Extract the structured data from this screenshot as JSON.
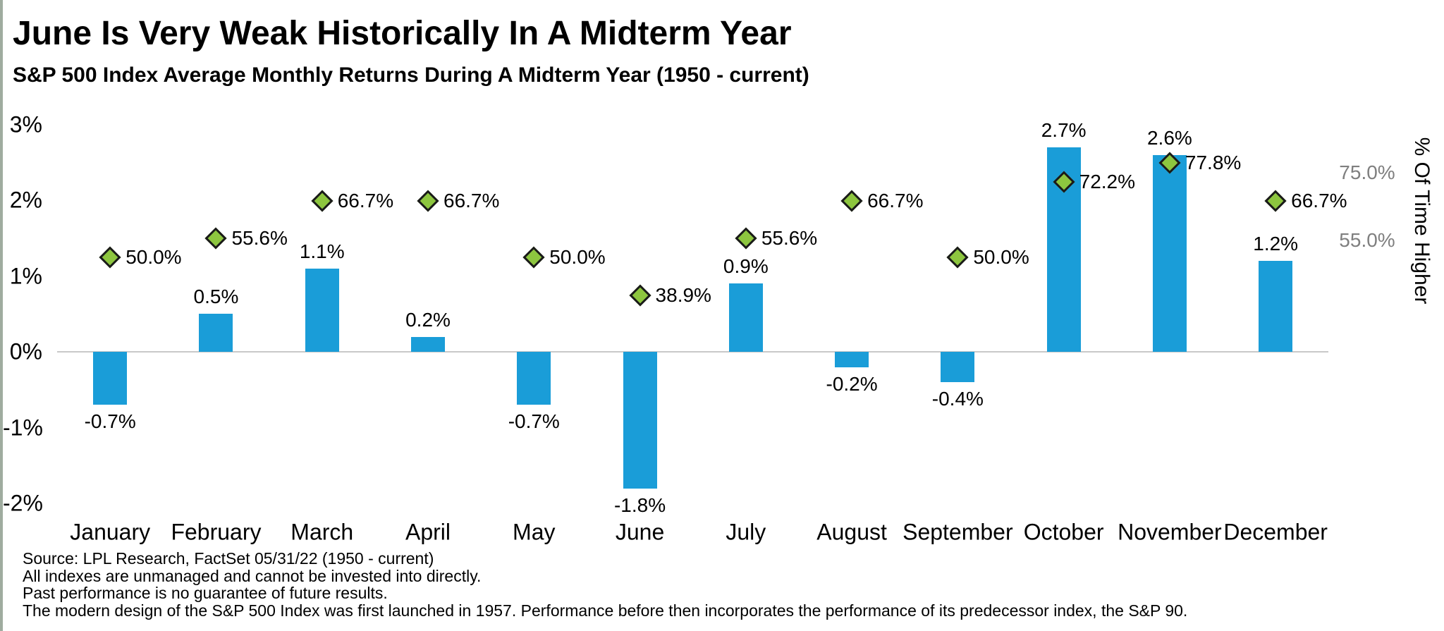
{
  "header": {
    "title": "June Is Very Weak Historically In A Midterm Year",
    "subtitle": "S&P 500 Index Average Monthly Returns During A Midterm Year (1950 - current)"
  },
  "chart_data": {
    "type": "bar",
    "categories": [
      "January",
      "February",
      "March",
      "April",
      "May",
      "June",
      "July",
      "August",
      "September",
      "October",
      "November",
      "December"
    ],
    "series": [
      {
        "name": "Average Monthly Return",
        "type": "bar",
        "values": [
          -0.7,
          0.5,
          1.1,
          0.2,
          -0.7,
          -1.8,
          0.9,
          -0.2,
          -0.4,
          2.7,
          2.6,
          1.2
        ],
        "labels": [
          "-0.7%",
          "0.5%",
          "1.1%",
          "0.2%",
          "-0.7%",
          "-1.8%",
          "0.9%",
          "-0.2%",
          "-0.4%",
          "2.7%",
          "2.6%",
          "1.2%"
        ]
      },
      {
        "name": "% Of Time Higher",
        "type": "scatter-diamond",
        "values": [
          50.0,
          55.6,
          66.7,
          66.7,
          50.0,
          38.9,
          55.6,
          66.7,
          50.0,
          72.2,
          77.8,
          66.7
        ],
        "labels": [
          "50.0%",
          "55.6%",
          "66.7%",
          "66.7%",
          "50.0%",
          "38.9%",
          "55.6%",
          "66.7%",
          "50.0%",
          "72.2%",
          "77.8%",
          "66.7%"
        ]
      }
    ],
    "left_axis": {
      "tick_labels": [
        "3%",
        "2%",
        "1%",
        "0%",
        "-1%",
        "-2%"
      ],
      "tick_values": [
        3,
        2,
        1,
        0,
        -1,
        -2
      ]
    },
    "right_axis": {
      "title": "% Of Time Higher",
      "tick_labels": [
        "75.0%",
        "55.0%"
      ],
      "tick_values": [
        75,
        55
      ]
    },
    "grid": "zero-line-only",
    "legend": "none",
    "colors": {
      "bar": "#1A9DD8",
      "diamond": "#8DC63F",
      "diamond_border": "#1A1A1A",
      "zero_line": "#C9C9C9",
      "right_axis_text": "#7F7F7F"
    }
  },
  "footnotes": [
    "Source: LPL Research, FactSet 05/31/22  (1950 - current)",
    "All indexes are unmanaged and cannot be invested into directly.",
    "Past performance is no guarantee of future results.",
    "The modern design of the S&P 500 Index was first launched in 1957. Performance before then incorporates the performance of its  predecessor index, the S&P 90."
  ]
}
